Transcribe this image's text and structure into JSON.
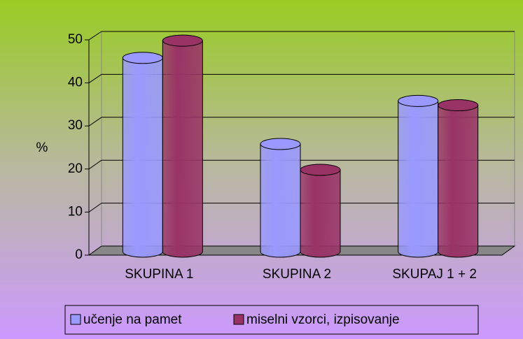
{
  "chart_data": {
    "type": "bar",
    "categories": [
      "SKUPINA 1",
      "SKUPINA 2",
      "SKUPAJ 1 + 2"
    ],
    "series": [
      {
        "name": "učenje na pamet",
        "color": "#9999ff",
        "values": [
          45,
          25,
          35
        ]
      },
      {
        "name": "miselni vzorci, izpisovanje",
        "color": "#993366",
        "values": [
          49,
          19,
          34
        ]
      }
    ],
    "ylabel": "%",
    "ylim": [
      0,
      50
    ],
    "yticks": [
      0,
      10,
      20,
      30,
      40,
      50
    ],
    "grid": true,
    "legend": "bottom"
  }
}
